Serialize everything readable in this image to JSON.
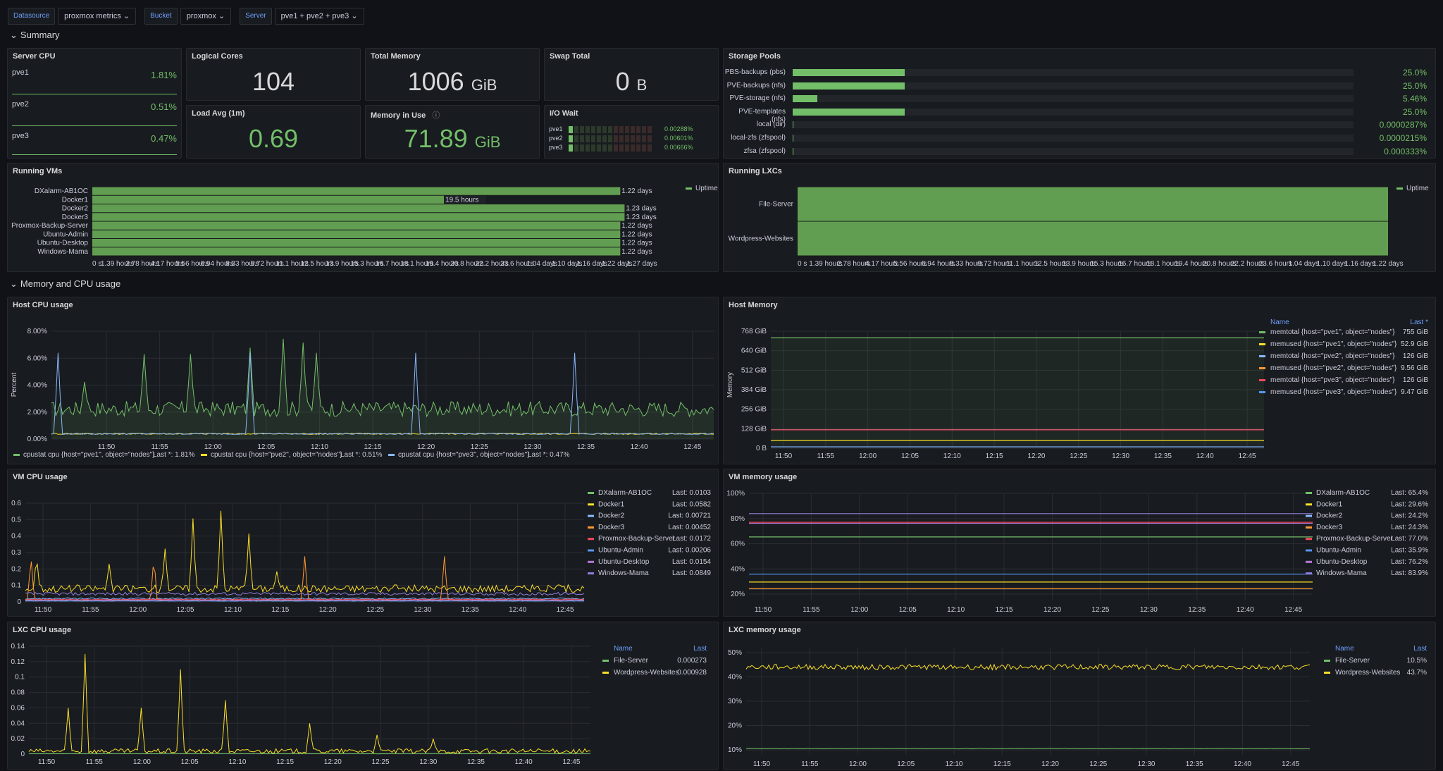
{
  "variables": [
    {
      "label": "Datasource",
      "value": "proxmox metrics"
    },
    {
      "label": "Bucket",
      "value": "proxmox"
    },
    {
      "label": "Server",
      "value": "pve1 + pve2 + pve3"
    }
  ],
  "rows": {
    "summary": "Summary",
    "memcpu": "Memory and CPU usage"
  },
  "server_cpu": {
    "title": "Server CPU",
    "items": [
      {
        "name": "pve1",
        "value": "1.81%"
      },
      {
        "name": "pve2",
        "value": "0.51%"
      },
      {
        "name": "pve3",
        "value": "0.47%"
      }
    ]
  },
  "logical_cores": {
    "title": "Logical Cores",
    "value": "104"
  },
  "total_memory": {
    "title": "Total Memory",
    "value": "1006",
    "unit": "GiB"
  },
  "swap_total": {
    "title": "Swap Total",
    "value": "0",
    "unit": "B"
  },
  "load_avg": {
    "title": "Load Avg (1m)",
    "value": "0.69"
  },
  "memory_in_use": {
    "title": "Memory in Use",
    "value": "71.89",
    "unit": "GiB"
  },
  "io_wait": {
    "title": "I/O Wait",
    "items": [
      {
        "name": "pve1",
        "value": "0.00288%"
      },
      {
        "name": "pve2",
        "value": "0.00601%"
      },
      {
        "name": "pve3",
        "value": "0.00666%"
      }
    ]
  },
  "storage_pools": {
    "title": "Storage Pools",
    "items": [
      {
        "name": "PBS-backups (pbs)",
        "value": "25.0%",
        "pct": 25.0
      },
      {
        "name": "PVE-backups (nfs)",
        "value": "25.0%",
        "pct": 25.0
      },
      {
        "name": "PVE-storage (nfs)",
        "value": "5.46%",
        "pct": 5.46
      },
      {
        "name": "PVE-templates (nfs)",
        "value": "25.0%",
        "pct": 25.0
      },
      {
        "name": "local (dir)",
        "value": "0.0000287%",
        "pct": 2.87e-05
      },
      {
        "name": "local-zfs (zfspool)",
        "value": "0.0000215%",
        "pct": 2.15e-05
      },
      {
        "name": "zfsa (zfspool)",
        "value": "0.000333%",
        "pct": 0.000333
      }
    ]
  },
  "running_vms": {
    "title": "Running VMs",
    "legend": "Uptime"
  },
  "running_lxcs": {
    "title": "Running LXCs",
    "legend": "Uptime"
  },
  "host_cpu": {
    "title": "Host CPU usage",
    "ylabel": "Percent"
  },
  "host_memory": {
    "title": "Host Memory",
    "ylabel": "Memory",
    "legend_headers": [
      "Name",
      "Last *"
    ]
  },
  "vm_cpu": {
    "title": "VM CPU usage"
  },
  "vm_memory": {
    "title": "VM memory usage"
  },
  "lxc_cpu": {
    "title": "LXC CPU usage",
    "legend_headers": [
      "Name",
      "Last"
    ]
  },
  "lxc_memory": {
    "title": "LXC memory usage",
    "legend_headers": [
      "Name",
      "Last"
    ]
  },
  "time_ticks": [
    "11:50",
    "11:55",
    "12:00",
    "12:05",
    "12:10",
    "12:15",
    "12:20",
    "12:25",
    "12:30",
    "12:35",
    "12:40",
    "12:45"
  ],
  "colors": {
    "green": "#73bf69",
    "yellow": "#fade2a",
    "blue": "#8ab8ff",
    "orange": "#ff9830",
    "red": "#f2495c",
    "blue2": "#5794f2",
    "purple": "#b877d9",
    "violet": "#8f7fe0"
  },
  "chart_data": [
    {
      "name": "running_vms",
      "type": "bar",
      "categories": [
        "DXalarm-AB1OC",
        "Docker1",
        "Docker2",
        "Docker3",
        "Proxmox-Backup-Server",
        "Ubuntu-Admin",
        "Ubuntu-Desktop",
        "Windows-Mama"
      ],
      "values": [
        1.22,
        0.8125,
        1.23,
        1.23,
        1.22,
        1.22,
        1.22,
        1.22
      ],
      "value_labels": [
        "1.22 days",
        "19.5 hours",
        "1.23 days",
        "1.23 days",
        "1.22 days",
        "1.22 days",
        "1.22 days",
        "1.22 days"
      ],
      "xticks": [
        "0 s",
        "1.39 hours",
        "2.78 hours",
        "4.17 hours",
        "5.56 hours",
        "6.94 hours",
        "8.33 hours",
        "9.72 hours",
        "11.1 hours",
        "12.5 hours",
        "13.9 hours",
        "15.3 hours",
        "16.7 hours",
        "18.1 hours",
        "19.4 hours",
        "20.8 hours",
        "22.2 hours",
        "23.6 hours",
        "1.04 days",
        "1.10 days",
        "1.16 days",
        "1.22 days",
        "1.27 days"
      ],
      "xlim": [
        0,
        1.27
      ]
    },
    {
      "name": "running_lxcs",
      "type": "bar",
      "categories": [
        "File-Server",
        "Wordpress-Websites"
      ],
      "values": [
        1.22,
        1.22
      ],
      "xticks": [
        "0 s",
        "1.39 hours",
        "2.78 hours",
        "4.17 hours",
        "5.56 hours",
        "6.94 hours",
        "8.33 hours",
        "9.72 hours",
        "11.1 hours",
        "12.5 hours",
        "13.9 hours",
        "15.3 hours",
        "16.7 hours",
        "18.1 hours",
        "19.4 hours",
        "20.8 hours",
        "22.2 hours",
        "23.6 hours",
        "1.04 days",
        "1.10 days",
        "1.16 days",
        "1.22 days"
      ],
      "xlim": [
        0,
        1.22
      ]
    },
    {
      "name": "host_cpu",
      "type": "line",
      "yticks": [
        "0.00%",
        "2.00%",
        "4.00%",
        "6.00%",
        "8.00%"
      ],
      "ylim": [
        0,
        8.5
      ],
      "series": [
        {
          "name": "cpustat cpu {host=\"pve1\", object=\"nodes\"}",
          "last": "Last *: 1.81%",
          "color": "#73bf69",
          "base": 2.2,
          "amp": 1.2,
          "spikes": [
            [
              0.05,
              4.5
            ],
            [
              0.14,
              6.7
            ],
            [
              0.21,
              6.7
            ],
            [
              0.3,
              7.2
            ],
            [
              0.35,
              7.9
            ],
            [
              0.38,
              7.6
            ],
            [
              0.4,
              6.8
            ]
          ],
          "fill": true
        },
        {
          "name": "cpustat cpu {host=\"pve2\", object=\"nodes\"}",
          "last": "Last *: 0.51%",
          "color": "#fade2a",
          "base": 0.4,
          "amp": 0.1,
          "spikes": []
        },
        {
          "name": "cpustat cpu {host=\"pve3\", object=\"nodes\"}",
          "last": "Last *: 0.47%",
          "color": "#8ab8ff",
          "base": 0.4,
          "amp": 0.1,
          "spikes": [
            [
              0.01,
              6.8
            ],
            [
              0.3,
              6.8
            ],
            [
              0.55,
              6.8
            ],
            [
              0.79,
              6.8
            ]
          ]
        }
      ]
    },
    {
      "name": "host_memory",
      "type": "line",
      "yticks": [
        "0 B",
        "128 GiB",
        "256 GiB",
        "384 GiB",
        "512 GiB",
        "640 GiB",
        "768 GiB"
      ],
      "ylim": [
        0,
        800
      ],
      "series": [
        {
          "name": "memtotal {host=\"pve1\", object=\"nodes\"}",
          "last": "755 GiB",
          "color": "#73bf69",
          "value": 755
        },
        {
          "name": "memused {host=\"pve1\", object=\"nodes\"}",
          "last": "52.9 GiB",
          "color": "#fade2a",
          "value": 52.9
        },
        {
          "name": "memtotal {host=\"pve2\", object=\"nodes\"}",
          "last": "126 GiB",
          "color": "#8ab8ff",
          "value": 126
        },
        {
          "name": "memused {host=\"pve2\", object=\"nodes\"}",
          "last": "9.56 GiB",
          "color": "#ff9830",
          "value": 9.56
        },
        {
          "name": "memtotal {host=\"pve3\", object=\"nodes\"}",
          "last": "126 GiB",
          "color": "#f2495c",
          "value": 126
        },
        {
          "name": "memused {host=\"pve3\", object=\"nodes\"}",
          "last": "9.47 GiB",
          "color": "#5794f2",
          "value": 9.47
        }
      ]
    },
    {
      "name": "vm_cpu",
      "type": "line",
      "yticks": [
        "0",
        "0.1",
        "0.2",
        "0.3",
        "0.4",
        "0.5",
        "0.6"
      ],
      "ylim": [
        0,
        0.65
      ],
      "series": [
        {
          "name": "DXalarm-AB1OC",
          "last": "Last: 0.0103",
          "color": "#73bf69"
        },
        {
          "name": "Docker1",
          "last": "Last: 0.0582",
          "color": "#fade2a"
        },
        {
          "name": "Docker2",
          "last": "Last: 0.00721",
          "color": "#8ab8ff"
        },
        {
          "name": "Docker3",
          "last": "Last: 0.00452",
          "color": "#ff9830"
        },
        {
          "name": "Proxmox-Backup-Server",
          "last": "Last: 0.0172",
          "color": "#f2495c"
        },
        {
          "name": "Ubuntu-Admin",
          "last": "Last: 0.00206",
          "color": "#5794f2"
        },
        {
          "name": "Ubuntu-Desktop",
          "last": "Last: 0.0154",
          "color": "#b877d9"
        },
        {
          "name": "Windows-Mama",
          "last": "Last: 0.0849",
          "color": "#8f7fe0"
        }
      ]
    },
    {
      "name": "vm_memory",
      "type": "line",
      "yticks": [
        "20%",
        "40%",
        "60%",
        "80%",
        "100%"
      ],
      "ylim": [
        15,
        100
      ],
      "series": [
        {
          "name": "DXalarm-AB1OC",
          "last": "Last: 65.4%",
          "color": "#73bf69",
          "value": 65.4
        },
        {
          "name": "Docker1",
          "last": "Last: 29.6%",
          "color": "#fade2a",
          "value": 29.6
        },
        {
          "name": "Docker2",
          "last": "Last: 24.2%",
          "color": "#8ab8ff",
          "value": 24.2
        },
        {
          "name": "Docker3",
          "last": "Last: 24.3%",
          "color": "#ff9830",
          "value": 24.3
        },
        {
          "name": "Proxmox-Backup-Server",
          "last": "Last: 77.0%",
          "color": "#f2495c",
          "value": 77.0
        },
        {
          "name": "Ubuntu-Admin",
          "last": "Last: 35.9%",
          "color": "#5794f2",
          "value": 35.9
        },
        {
          "name": "Ubuntu-Desktop",
          "last": "Last: 76.2%",
          "color": "#b877d9",
          "value": 76.2
        },
        {
          "name": "Windows-Mama",
          "last": "Last: 83.9%",
          "color": "#8f7fe0",
          "value": 83.9
        }
      ]
    },
    {
      "name": "lxc_cpu",
      "type": "line",
      "yticks": [
        "0",
        "0.02",
        "0.04",
        "0.06",
        "0.08",
        "0.1",
        "0.12",
        "0.14"
      ],
      "ylim": [
        0,
        0.14
      ],
      "series": [
        {
          "name": "File-Server",
          "last": "0.000273",
          "color": "#73bf69"
        },
        {
          "name": "Wordpress-Websites",
          "last": "0.000928",
          "color": "#fade2a"
        }
      ]
    },
    {
      "name": "lxc_memory",
      "type": "line",
      "yticks": [
        "10%",
        "20%",
        "30%",
        "40%",
        "50%"
      ],
      "ylim": [
        8,
        52
      ],
      "series": [
        {
          "name": "File-Server",
          "last": "10.5%",
          "color": "#73bf69",
          "value": 10.5
        },
        {
          "name": "Wordpress-Websites",
          "last": "43.7%",
          "color": "#fade2a",
          "value": 43.7
        }
      ]
    }
  ]
}
